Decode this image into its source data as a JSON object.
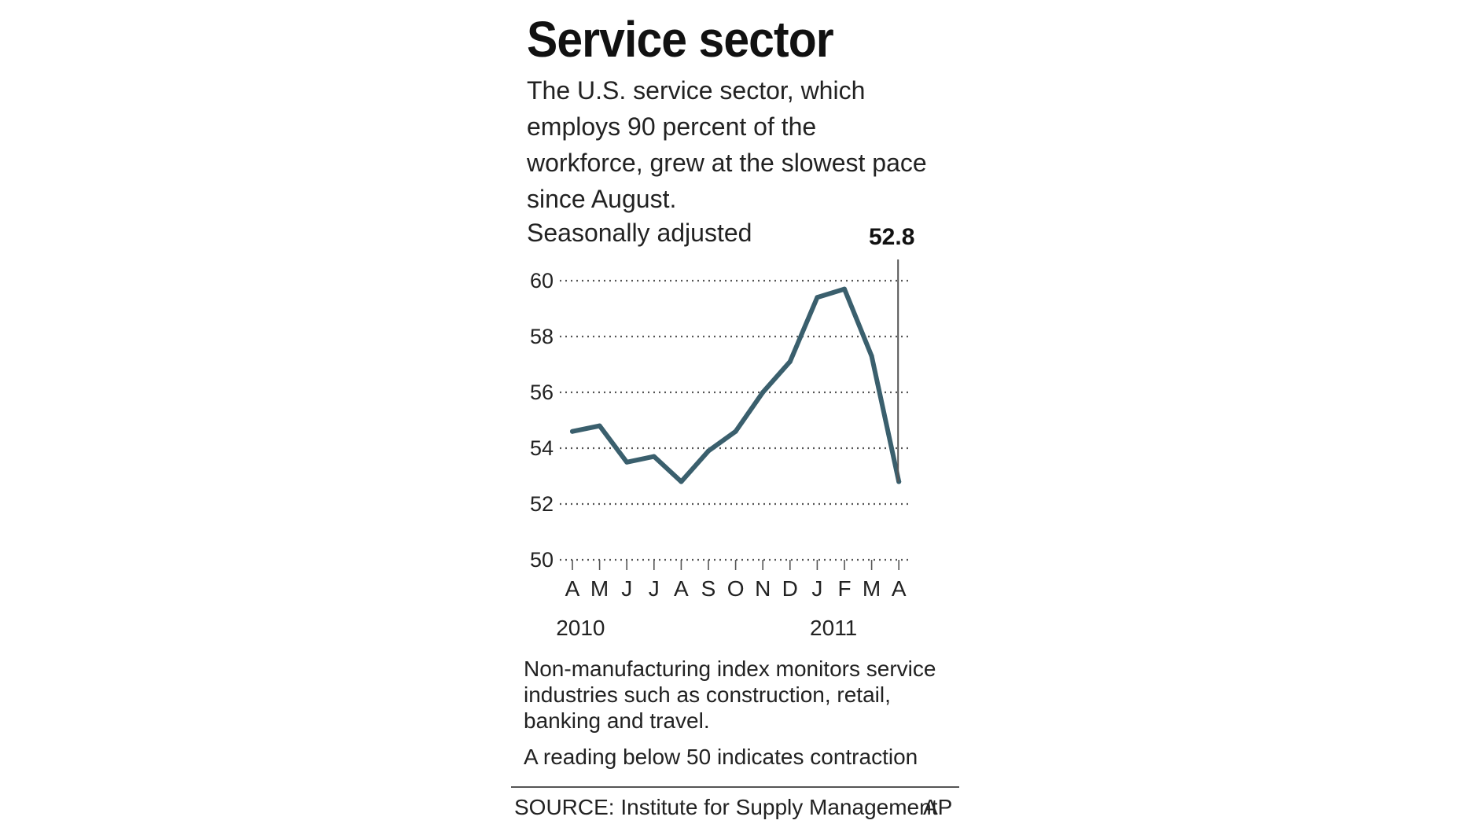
{
  "graphic": {
    "title": "Service sector",
    "subtitle": "The U.S. service sector, which employs 90 percent of the workforce, grew at the slowest pace since August.",
    "adjustment_note": "Seasonally adjusted",
    "description": "Non-manufacturing index monitors service industries such as construction, retail, banking and travel.",
    "contraction_note": "A reading below 50 indicates contraction",
    "source": "SOURCE: Institute for Supply Management",
    "credit": "AP"
  },
  "chart_data": {
    "type": "line",
    "title": "",
    "xlabel": "",
    "ylabel": "",
    "categories": [
      "A",
      "M",
      "J",
      "J",
      "A",
      "S",
      "O",
      "N",
      "D",
      "J",
      "F",
      "M",
      "A"
    ],
    "year_labels": [
      {
        "label": "2010",
        "index": 0.3
      },
      {
        "label": "2011",
        "index": 9.6
      }
    ],
    "series": [
      {
        "values": [
          54.6,
          54.8,
          53.5,
          53.7,
          52.8,
          53.9,
          54.6,
          56.0,
          57.1,
          59.4,
          59.7,
          57.3,
          52.8
        ]
      }
    ],
    "callout": {
      "index": 12,
      "label": "52.8"
    },
    "ylim": [
      50,
      60
    ],
    "yticks": [
      50,
      52,
      54,
      56,
      58,
      60
    ],
    "grid": true,
    "line_color": "#3a5f6d",
    "grid_color": "#555555",
    "legend": "none"
  }
}
